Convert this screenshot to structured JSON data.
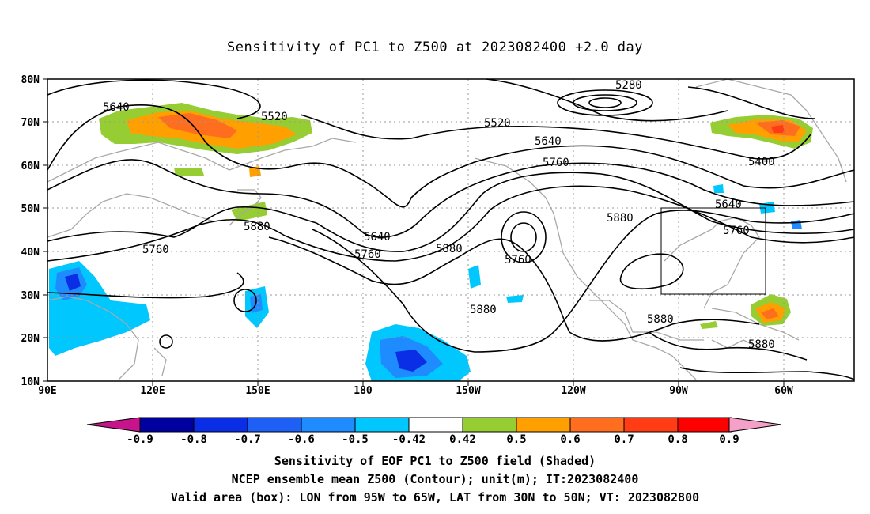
{
  "title": "Sensitivity of PC1 to Z500 at 2023082400 +2.0 day",
  "map": {
    "lat_labels": [
      "80N",
      "70N",
      "60N",
      "50N",
      "40N",
      "30N",
      "20N",
      "10N"
    ],
    "lon_labels": [
      "90E",
      "120E",
      "150E",
      "180",
      "150W",
      "120W",
      "90W",
      "60W"
    ],
    "valid_box": {
      "lon_west": "95W",
      "lon_east": "65W",
      "lat_south": "30N",
      "lat_north": "50N"
    }
  },
  "contour_labels": [
    "5280",
    "5520",
    "5520",
    "5640",
    "5640",
    "5640",
    "5640",
    "5400",
    "5760",
    "5760",
    "5760",
    "5760",
    "5760",
    "5880",
    "5880",
    "5880",
    "5880",
    "5880",
    "5880"
  ],
  "colorbar": {
    "tick_labels": [
      "-0.9",
      "-0.8",
      "-0.7",
      "-0.6",
      "-0.5",
      "-0.42",
      "0.42",
      "0.5",
      "0.6",
      "0.7",
      "0.8",
      "0.9"
    ],
    "colors": [
      "#0000a0",
      "#0a2ee6",
      "#1e5ff5",
      "#1e8cff",
      "#00c8ff",
      "#ffffff",
      "#96cd32",
      "#ffa000",
      "#ff6e1e",
      "#ff3c14",
      "#ff0000"
    ],
    "low_arrow_color": "#c8148c",
    "high_arrow_color": "#f5a0c8"
  },
  "captions": [
    "Sensitivity of EOF PC1 to Z500 field (Shaded)",
    "NCEP ensemble mean Z500 (Contour); unit(m); IT:2023082400",
    "Valid area (box): LON from 95W to 65W, LAT from 30N to 50N; VT: 2023082800"
  ]
}
